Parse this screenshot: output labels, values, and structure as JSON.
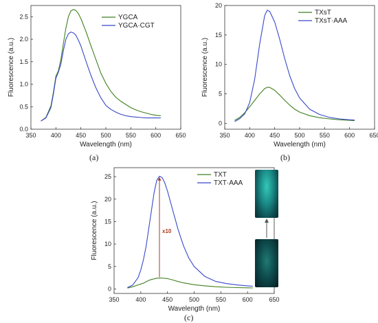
{
  "colors": {
    "green": "#3f7f1f",
    "blue": "#3747c9",
    "arrow": "#a83a1f",
    "axis": "#333333"
  },
  "panels": [
    {
      "label": "(a)"
    },
    {
      "label": "(b)"
    },
    {
      "label": "(c)"
    }
  ],
  "annotations": {
    "arrow_label": "x10"
  },
  "chart_data": [
    {
      "type": "line",
      "title": "",
      "xlabel": "Wavelength (nm)",
      "ylabel": "Fluorescence (a.u.)",
      "xlim": [
        350,
        650
      ],
      "ylim": [
        0,
        2.75
      ],
      "xticks": [
        350,
        400,
        450,
        500,
        550,
        600,
        650
      ],
      "yticks": [
        0.0,
        0.5,
        1.0,
        1.5,
        2.0,
        2.5
      ],
      "ytick_labels": [
        "0.0",
        "0.5",
        "1.0",
        "1.5",
        "2.0",
        "2.5"
      ],
      "legend": "top-right",
      "series": [
        {
          "name": "YGCA",
          "color": "green",
          "x": [
            370,
            380,
            390,
            395,
            400,
            405,
            410,
            415,
            420,
            425,
            430,
            435,
            440,
            445,
            450,
            460,
            470,
            480,
            490,
            500,
            510,
            520,
            530,
            540,
            550,
            560,
            570,
            580,
            590,
            600,
            610
          ],
          "y": [
            0.18,
            0.26,
            0.52,
            0.82,
            1.18,
            1.3,
            1.55,
            1.9,
            2.25,
            2.5,
            2.63,
            2.66,
            2.64,
            2.57,
            2.46,
            2.18,
            1.86,
            1.55,
            1.25,
            1.02,
            0.84,
            0.71,
            0.62,
            0.55,
            0.48,
            0.43,
            0.39,
            0.36,
            0.33,
            0.31,
            0.3
          ]
        },
        {
          "name": "YGCA·CGT",
          "color": "blue",
          "x": [
            370,
            380,
            390,
            395,
            400,
            405,
            410,
            415,
            420,
            425,
            430,
            435,
            440,
            445,
            450,
            460,
            470,
            480,
            490,
            500,
            510,
            520,
            530,
            540,
            550,
            560,
            570,
            580,
            590,
            600,
            610
          ],
          "y": [
            0.18,
            0.25,
            0.48,
            0.78,
            1.13,
            1.27,
            1.45,
            1.75,
            2.0,
            2.12,
            2.16,
            2.14,
            2.09,
            1.98,
            1.85,
            1.52,
            1.2,
            0.92,
            0.7,
            0.53,
            0.44,
            0.38,
            0.33,
            0.3,
            0.28,
            0.27,
            0.26,
            0.25,
            0.25,
            0.25,
            0.25
          ]
        }
      ]
    },
    {
      "type": "line",
      "title": "",
      "xlabel": "Wavelength (nm)",
      "ylabel": "Fluorescence (a.u.)",
      "xlim": [
        350,
        650
      ],
      "ylim": [
        -1,
        20
      ],
      "xticks": [
        350,
        400,
        450,
        500,
        550,
        600,
        650
      ],
      "yticks": [
        0,
        5,
        10,
        15,
        20
      ],
      "ytick_labels": [
        "0",
        "5",
        "10",
        "15",
        "20"
      ],
      "legend": "top-right",
      "series": [
        {
          "name": "TXsT",
          "color": "green",
          "x": [
            370,
            380,
            390,
            400,
            410,
            420,
            430,
            435,
            440,
            450,
            460,
            470,
            480,
            490,
            500,
            520,
            540,
            560,
            580,
            600,
            610
          ],
          "y": [
            0.5,
            1.0,
            1.8,
            2.8,
            3.9,
            5.0,
            5.9,
            6.1,
            6.1,
            5.6,
            4.8,
            3.9,
            3.1,
            2.4,
            1.9,
            1.3,
            0.95,
            0.75,
            0.6,
            0.5,
            0.45
          ]
        },
        {
          "name": "TXsT·AAA",
          "color": "blue",
          "x": [
            370,
            380,
            390,
            400,
            410,
            420,
            430,
            435,
            440,
            450,
            460,
            470,
            480,
            490,
            500,
            520,
            540,
            560,
            580,
            600,
            610
          ],
          "y": [
            0.3,
            0.8,
            1.6,
            3.5,
            7.5,
            13.5,
            18.3,
            19.2,
            19.0,
            17.2,
            14.3,
            11.0,
            8.1,
            5.9,
            4.3,
            2.4,
            1.5,
            1.0,
            0.75,
            0.6,
            0.55
          ]
        }
      ]
    },
    {
      "type": "line",
      "title": "",
      "xlabel": "Wavelength (nm)",
      "ylabel": "Fluorescence (a.u.)",
      "xlim": [
        350,
        650
      ],
      "ylim": [
        -1,
        27
      ],
      "xticks": [
        350,
        400,
        450,
        500,
        550,
        600,
        650
      ],
      "yticks": [
        0,
        5,
        10,
        15,
        20,
        25
      ],
      "ytick_labels": [
        "0",
        "5",
        "10",
        "15",
        "20",
        "25"
      ],
      "legend": "top-right",
      "series": [
        {
          "name": "TXT",
          "color": "green",
          "x": [
            375,
            385,
            395,
            400,
            405,
            410,
            415,
            420,
            430,
            440,
            450,
            460,
            470,
            480,
            500,
            520,
            540,
            560,
            580,
            600,
            610
          ],
          "y": [
            0.2,
            0.5,
            0.9,
            1.1,
            1.3,
            1.6,
            1.9,
            2.1,
            2.4,
            2.45,
            2.3,
            2.0,
            1.65,
            1.35,
            0.95,
            0.7,
            0.5,
            0.38,
            0.3,
            0.25,
            0.22
          ]
        },
        {
          "name": "TXT·AAA",
          "color": "blue",
          "x": [
            375,
            385,
            395,
            400,
            405,
            410,
            415,
            420,
            425,
            430,
            435,
            440,
            445,
            450,
            460,
            470,
            480,
            490,
            500,
            520,
            540,
            560,
            580,
            600,
            610
          ],
          "y": [
            0.3,
            0.9,
            2.5,
            4.2,
            6.5,
            9.5,
            13.5,
            17.5,
            21.5,
            24.2,
            25.1,
            24.8,
            23.6,
            21.8,
            17.5,
            13.2,
            9.6,
            6.9,
            5.0,
            2.8,
            1.7,
            1.2,
            0.9,
            0.7,
            0.6
          ]
        }
      ]
    }
  ]
}
